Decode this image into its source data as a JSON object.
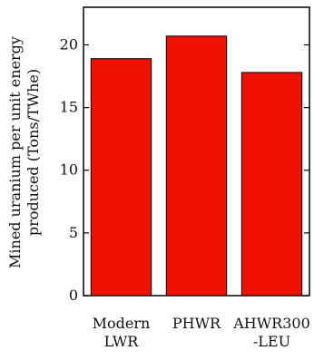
{
  "chart_data": {
    "type": "bar",
    "title": "",
    "xlabel": "",
    "ylabel_lines": [
      "Mined uranium per unit energy",
      "produced (Tons/TWhe)"
    ],
    "categories": [
      [
        "Modern",
        "LWR"
      ],
      [
        "PHWR"
      ],
      [
        "AHWR300",
        "-LEU"
      ]
    ],
    "values": [
      18.9,
      20.7,
      17.8
    ],
    "ylim": [
      0,
      23
    ],
    "yticks": [
      0,
      5,
      10,
      15,
      20
    ],
    "grid": false,
    "legend": "none",
    "bar_color": "#ee1100",
    "bar_edge_color": "#000000"
  }
}
